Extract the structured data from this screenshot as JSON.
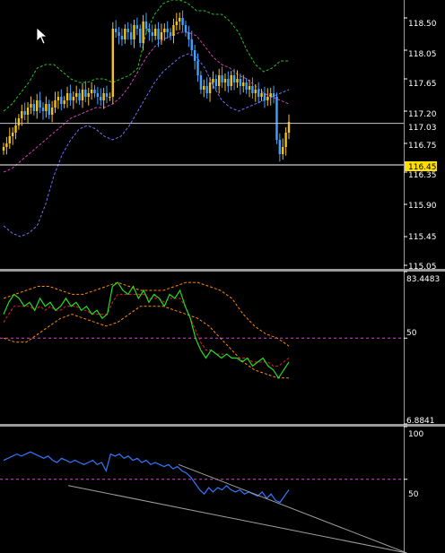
{
  "colors": {
    "background": "#000000",
    "grid": "#ffffff",
    "bull": "#f2c21b",
    "bear": "#3fa2ff",
    "bands": "#25c025",
    "ma": "#d040c0",
    "lower_band": "#7070ff",
    "rsi_line": "#22dd22",
    "rsi_upper": "#ff8800",
    "rsi_mid": "#e02020",
    "panel3_line": "#3377ff",
    "trend_line": "#a0a0a0",
    "level50": "#c050c0",
    "price_box": "#ffe000"
  },
  "price_panel": {
    "ticks": [
      "118.50",
      "118.05",
      "117.65",
      "117.20",
      "116.75",
      "116.35",
      "115.90",
      "115.45",
      "115.05"
    ],
    "current_label": "117.03",
    "highlight_label": "116.45"
  },
  "indicator_panel": {
    "top_label": "83.4483",
    "mid_label": "50",
    "bottom_label": "6.8841"
  },
  "oscillator_panel": {
    "top_label": "100",
    "mid_label": "50"
  },
  "chart_data": [
    {
      "type": "line",
      "title": "",
      "y_ticks": [
        118.5,
        118.05,
        117.65,
        117.2,
        116.75,
        116.35,
        115.9,
        115.45,
        115.05
      ],
      "ylim": [
        115.0,
        118.75
      ],
      "levels": [
        117.03,
        116.45
      ],
      "close": [
        116.7,
        116.75,
        116.85,
        116.9,
        117.0,
        117.1,
        117.2,
        117.15,
        117.25,
        117.3,
        117.2,
        117.35,
        117.25,
        117.2,
        117.3,
        117.15,
        117.25,
        117.35,
        117.4,
        117.3,
        117.35,
        117.45,
        117.35,
        117.4,
        117.45,
        117.35,
        117.5,
        117.4,
        117.45,
        117.5,
        117.45,
        117.4,
        117.35,
        117.45,
        117.4,
        117.4,
        118.35,
        118.3,
        118.25,
        118.2,
        118.35,
        118.3,
        118.2,
        118.4,
        118.35,
        118.15,
        118.45,
        118.35,
        118.3,
        118.25,
        118.35,
        118.2,
        118.3,
        118.35,
        118.3,
        118.25,
        118.4,
        118.45,
        118.5,
        118.4,
        118.3,
        118.2,
        118.05,
        117.9,
        117.7,
        117.5,
        117.55,
        117.45,
        117.6,
        117.65,
        117.55,
        117.7,
        117.6,
        117.65,
        117.55,
        117.7,
        117.6,
        117.65,
        117.55,
        117.6,
        117.5,
        117.55,
        117.45,
        117.5,
        117.4,
        117.45,
        117.35,
        117.4,
        117.45,
        117.4,
        116.8,
        116.6,
        116.7,
        116.9,
        117.05
      ],
      "upper_band": [
        117.2,
        117.3,
        117.45,
        117.6,
        117.8,
        117.85,
        117.85,
        117.75,
        117.65,
        117.6,
        117.6,
        117.65,
        117.65,
        117.6,
        117.65,
        117.7,
        117.8,
        118.3,
        118.55,
        118.7,
        118.75,
        118.75,
        118.7,
        118.6,
        118.6,
        118.55,
        118.55,
        118.45,
        118.3,
        118.05,
        117.85,
        117.75,
        117.8,
        117.9,
        117.9
      ],
      "middle_band": [
        116.35,
        116.4,
        116.5,
        116.6,
        116.7,
        116.8,
        116.9,
        117.0,
        117.1,
        117.15,
        117.2,
        117.25,
        117.25,
        117.3,
        117.4,
        117.55,
        117.75,
        117.95,
        118.1,
        118.2,
        118.25,
        118.3,
        118.3,
        118.25,
        118.1,
        117.95,
        117.85,
        117.8,
        117.7,
        117.65,
        117.55,
        117.45,
        117.4,
        117.35,
        117.3
      ],
      "lower_band": [
        115.6,
        115.5,
        115.45,
        115.5,
        115.6,
        115.9,
        116.3,
        116.6,
        116.8,
        116.95,
        117.0,
        116.95,
        116.85,
        116.8,
        116.85,
        117.0,
        117.2,
        117.4,
        117.6,
        117.75,
        117.85,
        117.95,
        118.0,
        117.95,
        117.8,
        117.55,
        117.35,
        117.25,
        117.2,
        117.25,
        117.3,
        117.35,
        117.4,
        117.45,
        117.5
      ]
    },
    {
      "type": "line",
      "title": "",
      "y_ticks": [
        83.4483,
        50,
        6.8841
      ],
      "ylim": [
        6.8841,
        83.4483
      ],
      "level": 50,
      "main": [
        62,
        68,
        72,
        70,
        66,
        68,
        64,
        70,
        66,
        68,
        64,
        66,
        70,
        66,
        68,
        64,
        66,
        62,
        64,
        60,
        62,
        76,
        78,
        74,
        72,
        76,
        70,
        74,
        68,
        72,
        70,
        66,
        72,
        70,
        74,
        66,
        60,
        50,
        44,
        40,
        44,
        42,
        40,
        42,
        40,
        40,
        38,
        40,
        36,
        38,
        40,
        36,
        34,
        30,
        34,
        38
      ],
      "signal": [
        58,
        62,
        66,
        66,
        66,
        66,
        64,
        66,
        64,
        66,
        64,
        64,
        66,
        66,
        66,
        64,
        64,
        62,
        62,
        62,
        62,
        68,
        72,
        72,
        72,
        72,
        72,
        72,
        70,
        70,
        70,
        68,
        70,
        70,
        70,
        66,
        60,
        54,
        48,
        44,
        44,
        42,
        42,
        42,
        40,
        40,
        40,
        40,
        38,
        38,
        38,
        38,
        36,
        36,
        38,
        40
      ],
      "upper": [
        70,
        72,
        74,
        76,
        76,
        74,
        72,
        72,
        74,
        76,
        78,
        76,
        74,
        74,
        74,
        76,
        78,
        78,
        76,
        74,
        70,
        62,
        56,
        52,
        50,
        46
      ],
      "lower": [
        50,
        48,
        48,
        52,
        56,
        60,
        62,
        60,
        58,
        56,
        58,
        62,
        66,
        66,
        66,
        64,
        62,
        60,
        56,
        50,
        44,
        38,
        34,
        32,
        30,
        30
      ]
    },
    {
      "type": "line",
      "title": "",
      "y_ticks": [
        100,
        50
      ],
      "ylim": [
        -20,
        100
      ],
      "level": 50,
      "values": [
        68,
        70,
        72,
        74,
        72,
        74,
        76,
        74,
        72,
        70,
        72,
        68,
        66,
        70,
        68,
        66,
        68,
        66,
        64,
        66,
        68,
        64,
        66,
        58,
        74,
        72,
        74,
        70,
        72,
        68,
        70,
        66,
        68,
        64,
        66,
        64,
        62,
        64,
        60,
        62,
        58,
        56,
        52,
        46,
        40,
        36,
        42,
        38,
        42,
        40,
        44,
        40,
        38,
        40,
        36,
        38,
        36,
        34,
        38,
        32,
        36,
        30,
        28,
        34,
        40
      ],
      "trend_lines": [
        {
          "from": [
            92,
            64
          ],
          "to": [
            212,
            -20
          ]
        },
        {
          "from": [
            34,
            44
          ],
          "to": [
            212,
            -20
          ]
        }
      ]
    }
  ]
}
